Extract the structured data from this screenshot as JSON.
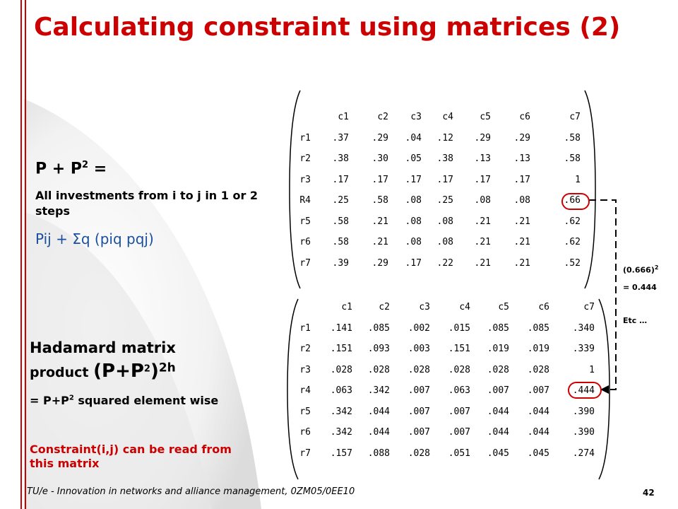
{
  "slide": {
    "title": "Calculating constraint using matrices (2)",
    "formula": "P + P",
    "formula_sup": "2",
    "formula_eq": " =",
    "desc": "All investments from i to j in 1 or 2 steps",
    "pij_text": "Pij + ",
    "pij_sigma": "Σ",
    "pij_rest": "q (piq pqj)",
    "hadamard_line1": "Hadamard matrix",
    "hadamard_line2_a": "product ",
    "hadamard_line2_b": "(P+P",
    "hadamard_line2_sup1": "2",
    "hadamard_line2_c": ")",
    "hadamard_line2_sup2": "2h",
    "hadamard_line3_a": "= P+P",
    "hadamard_line3_sup": "2",
    "hadamard_line3_b": " squared element wise",
    "constraint_note": "Constraint(i,j) can be read from this matrix",
    "footer": "TU/e - Innovation in networks and alliance management, 0ZM05/0EE10",
    "page_number": "42"
  },
  "annotations": {
    "square": "(0.666)",
    "square_sup": "2",
    "result": "= 0.444",
    "etc": "Etc …"
  },
  "matrix1": {
    "columns": [
      "c1",
      "c2",
      "c3",
      "c4",
      "c5",
      "c6",
      "c7"
    ],
    "rows": [
      {
        "label": "r1",
        "values": [
          ".37",
          ".29",
          ".04",
          ".12",
          ".29",
          ".29",
          ".58"
        ]
      },
      {
        "label": "r2",
        "values": [
          ".38",
          ".30",
          ".05",
          ".38",
          ".13",
          ".13",
          ".58"
        ]
      },
      {
        "label": "r3",
        "values": [
          ".17",
          ".17",
          ".17",
          ".17",
          ".17",
          ".17",
          "1"
        ]
      },
      {
        "label": "R4",
        "values": [
          ".25",
          ".58",
          ".08",
          ".25",
          ".08",
          ".08",
          ".66"
        ]
      },
      {
        "label": "r5",
        "values": [
          ".58",
          ".21",
          ".08",
          ".08",
          ".21",
          ".21",
          ".62"
        ]
      },
      {
        "label": "r6",
        "values": [
          ".58",
          ".21",
          ".08",
          ".08",
          ".21",
          ".21",
          ".62"
        ]
      },
      {
        "label": "r7",
        "values": [
          ".39",
          ".29",
          ".17",
          ".22",
          ".21",
          ".21",
          ".52"
        ]
      }
    ]
  },
  "matrix2": {
    "columns": [
      "c1",
      "c2",
      "c3",
      "c4",
      "c5",
      "c6",
      "c7"
    ],
    "rows": [
      {
        "label": "r1",
        "values": [
          ".141",
          ".085",
          ".002",
          ".015",
          ".085",
          ".085",
          ".340"
        ]
      },
      {
        "label": "r2",
        "values": [
          ".151",
          ".093",
          ".003",
          ".151",
          ".019",
          ".019",
          ".339"
        ]
      },
      {
        "label": "r3",
        "values": [
          ".028",
          ".028",
          ".028",
          ".028",
          ".028",
          ".028",
          "1"
        ]
      },
      {
        "label": "r4",
        "values": [
          ".063",
          ".342",
          ".007",
          ".063",
          ".007",
          ".007",
          ".444"
        ]
      },
      {
        "label": "r5",
        "values": [
          ".342",
          ".044",
          ".007",
          ".007",
          ".044",
          ".044",
          ".390"
        ]
      },
      {
        "label": "r6",
        "values": [
          ".342",
          ".044",
          ".007",
          ".007",
          ".044",
          ".044",
          ".390"
        ]
      },
      {
        "label": "r7",
        "values": [
          ".157",
          ".088",
          ".028",
          ".051",
          ".045",
          ".045",
          ".274"
        ]
      }
    ]
  },
  "colors": {
    "accent": "#cc0000",
    "blue_text": "#1a4fa0"
  }
}
